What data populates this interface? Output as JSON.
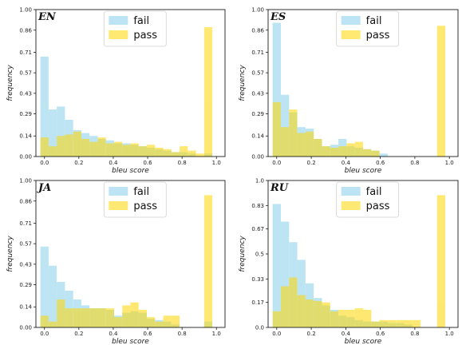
{
  "chart_data": [
    {
      "type": "bar",
      "title": "EN",
      "xlabel": "bleu score",
      "ylabel": "frequency",
      "xlim": [
        -0.05,
        1.05
      ],
      "ylim": [
        0,
        1.0
      ],
      "xticks": [
        "0.0",
        "0.2",
        "0.4",
        "0.6",
        "0.8",
        "1.0"
      ],
      "yticks": [
        "0.00",
        "0.14",
        "0.29",
        "0.43",
        "0.57",
        "0.71",
        "0.86",
        "1.00"
      ],
      "legend_position": "top-center",
      "bin_width": 0.0476,
      "series": [
        {
          "name": "fail",
          "color": "#87ceeb",
          "x": [
            0.0,
            0.0476,
            0.0952,
            0.1429,
            0.1905,
            0.2381,
            0.2857,
            0.3333,
            0.381,
            0.4286,
            0.4762,
            0.5238,
            0.5714,
            0.619,
            0.6667,
            0.7143,
            0.7619,
            0.8095,
            0.8571,
            0.9048,
            0.9524
          ],
          "values": [
            0.68,
            0.32,
            0.34,
            0.25,
            0.18,
            0.16,
            0.14,
            0.12,
            0.11,
            0.09,
            0.09,
            0.08,
            0.07,
            0.06,
            0.05,
            0.04,
            0.03,
            0.03,
            0.02,
            0.0,
            0.02
          ]
        },
        {
          "name": "pass",
          "color": "#ffd700",
          "x": [
            0.0,
            0.0476,
            0.0952,
            0.1429,
            0.1905,
            0.2381,
            0.2857,
            0.3333,
            0.381,
            0.4286,
            0.4762,
            0.5238,
            0.5714,
            0.619,
            0.6667,
            0.7143,
            0.7619,
            0.8095,
            0.8571,
            0.9048,
            0.9524
          ],
          "values": [
            0.13,
            0.07,
            0.14,
            0.15,
            0.17,
            0.12,
            0.1,
            0.13,
            0.09,
            0.1,
            0.08,
            0.09,
            0.07,
            0.08,
            0.06,
            0.05,
            0.03,
            0.07,
            0.04,
            0.02,
            0.88
          ]
        }
      ]
    },
    {
      "type": "bar",
      "title": "ES",
      "xlabel": "bleu score",
      "ylabel": "frequency",
      "xlim": [
        -0.05,
        1.05
      ],
      "ylim": [
        0,
        1.0
      ],
      "xticks": [
        "0.0",
        "0.2",
        "0.4",
        "0.6",
        "0.8",
        "1.0"
      ],
      "yticks": [
        "0.00",
        "0.14",
        "0.29",
        "0.43",
        "0.57",
        "0.71",
        "0.86",
        "1.00"
      ],
      "legend_position": "top-center",
      "bin_width": 0.0476,
      "series": [
        {
          "name": "fail",
          "color": "#87ceeb",
          "x": [
            0.0,
            0.0476,
            0.0952,
            0.1429,
            0.1905,
            0.2381,
            0.2857,
            0.3333,
            0.381,
            0.4286,
            0.4762,
            0.5238,
            0.5714,
            0.619,
            0.6667,
            0.7143,
            0.7619,
            0.8095,
            0.8571,
            0.9048,
            0.9524
          ],
          "values": [
            0.91,
            0.42,
            0.3,
            0.2,
            0.19,
            0.12,
            0.07,
            0.08,
            0.12,
            0.07,
            0.06,
            0.05,
            0.04,
            0.02,
            0.0,
            0.0,
            0.0,
            0.0,
            0.0,
            0.0,
            0.0
          ]
        },
        {
          "name": "pass",
          "color": "#ffd700",
          "x": [
            0.0,
            0.0476,
            0.0952,
            0.1429,
            0.1905,
            0.2381,
            0.2857,
            0.3333,
            0.381,
            0.4286,
            0.4762,
            0.5238,
            0.5714,
            0.619,
            0.6667,
            0.7143,
            0.7619,
            0.8095,
            0.8571,
            0.9048,
            0.9524
          ],
          "values": [
            0.37,
            0.2,
            0.32,
            0.16,
            0.17,
            0.12,
            0.07,
            0.06,
            0.07,
            0.09,
            0.1,
            0.05,
            0.04,
            0.0,
            0.0,
            0.0,
            0.0,
            0.0,
            0.0,
            0.0,
            0.89
          ]
        }
      ]
    },
    {
      "type": "bar",
      "title": "JA",
      "xlabel": "bleu score",
      "ylabel": "frequency",
      "xlim": [
        -0.05,
        1.05
      ],
      "ylim": [
        0,
        1.0
      ],
      "xticks": [
        "0.0",
        "0.2",
        "0.4",
        "0.6",
        "0.8",
        "1.0"
      ],
      "yticks": [
        "0.00",
        "0.14",
        "0.29",
        "0.43",
        "0.57",
        "0.71",
        "0.86",
        "1.00"
      ],
      "legend_position": "top-center",
      "bin_width": 0.0476,
      "series": [
        {
          "name": "fail",
          "color": "#87ceeb",
          "x": [
            0.0,
            0.0476,
            0.0952,
            0.1429,
            0.1905,
            0.2381,
            0.2857,
            0.3333,
            0.381,
            0.4286,
            0.4762,
            0.5238,
            0.5714,
            0.619,
            0.6667,
            0.7143,
            0.7619,
            0.8095,
            0.8571,
            0.9048,
            0.9524
          ],
          "values": [
            0.55,
            0.42,
            0.31,
            0.25,
            0.19,
            0.15,
            0.13,
            0.13,
            0.12,
            0.08,
            0.1,
            0.11,
            0.1,
            0.06,
            0.05,
            0.04,
            0.02,
            0.0,
            0.0,
            0.0,
            0.04
          ]
        },
        {
          "name": "pass",
          "color": "#ffd700",
          "x": [
            0.0,
            0.0476,
            0.0952,
            0.1429,
            0.1905,
            0.2381,
            0.2857,
            0.3333,
            0.381,
            0.4286,
            0.4762,
            0.5238,
            0.5714,
            0.619,
            0.6667,
            0.7143,
            0.7619,
            0.8095,
            0.8571,
            0.9048,
            0.9524
          ],
          "values": [
            0.08,
            0.04,
            0.19,
            0.13,
            0.13,
            0.13,
            0.13,
            0.13,
            0.13,
            0.07,
            0.15,
            0.17,
            0.12,
            0.07,
            0.04,
            0.08,
            0.08,
            0.0,
            0.0,
            0.0,
            0.9
          ]
        }
      ]
    },
    {
      "type": "bar",
      "title": "RU",
      "xlabel": "bleu score",
      "ylabel": "frequency",
      "xlim": [
        -0.05,
        1.05
      ],
      "ylim": [
        0,
        1.0
      ],
      "xticks": [
        "0.0",
        "0.2",
        "0.4",
        "0.6",
        "0.8",
        "1.0"
      ],
      "yticks": [
        "0.0",
        "0.17",
        "0.33",
        "0.5",
        "0.67",
        "0.83",
        "1.0"
      ],
      "legend_position": "top-center",
      "bin_width": 0.0476,
      "series": [
        {
          "name": "fail",
          "color": "#87ceeb",
          "x": [
            0.0,
            0.0476,
            0.0952,
            0.1429,
            0.1905,
            0.2381,
            0.2857,
            0.3333,
            0.381,
            0.4286,
            0.4762,
            0.5238,
            0.5714,
            0.619,
            0.6667,
            0.7143,
            0.7619,
            0.8095,
            0.8571,
            0.9048,
            0.9524
          ],
          "values": [
            0.84,
            0.72,
            0.58,
            0.46,
            0.3,
            0.2,
            0.15,
            0.12,
            0.08,
            0.07,
            0.05,
            0.04,
            0.04,
            0.04,
            0.03,
            0.03,
            0.02,
            0.0,
            0.0,
            0.0,
            0.0
          ]
        },
        {
          "name": "pass",
          "color": "#ffd700",
          "x": [
            0.0,
            0.0476,
            0.0952,
            0.1429,
            0.1905,
            0.2381,
            0.2857,
            0.3333,
            0.381,
            0.4286,
            0.4762,
            0.5238,
            0.5714,
            0.619,
            0.6667,
            0.7143,
            0.7619,
            0.8095,
            0.8571,
            0.9048,
            0.9524
          ],
          "values": [
            0.11,
            0.28,
            0.34,
            0.22,
            0.19,
            0.18,
            0.17,
            0.11,
            0.12,
            0.12,
            0.13,
            0.12,
            0.04,
            0.05,
            0.05,
            0.05,
            0.05,
            0.05,
            0.0,
            0.0,
            0.9
          ]
        }
      ]
    }
  ]
}
